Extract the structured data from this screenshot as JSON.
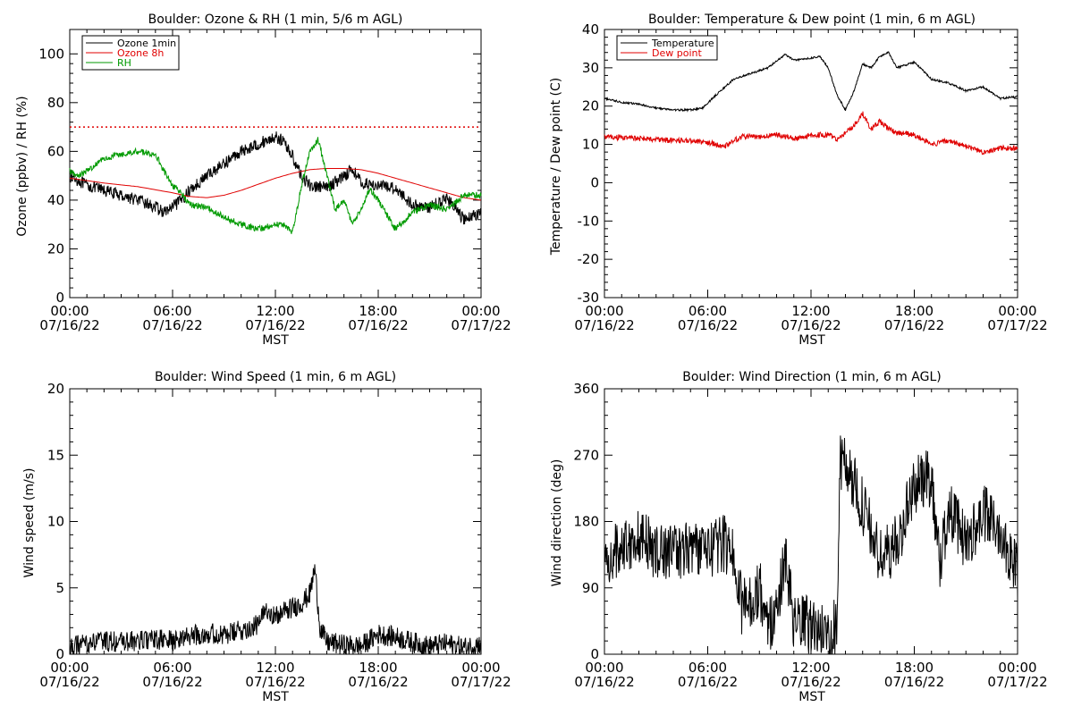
{
  "colors": {
    "black": "#000000",
    "red": "#e00000",
    "green": "#009a00",
    "background": "#ffffff"
  },
  "chart_data": [
    {
      "type": "line",
      "title": "Boulder: Ozone & RH (1 min, 5/6 m AGL)",
      "xlabel": "MST",
      "ylabel": "Ozone (ppbv) / RH (%)",
      "xlim_hours": [
        0,
        24
      ],
      "ylim": [
        0,
        110
      ],
      "yticks": [
        0,
        20,
        40,
        60,
        80,
        100
      ],
      "x_ticks": [
        {
          "hour": 0,
          "time": "00:00",
          "date": "07/16/22"
        },
        {
          "hour": 6,
          "time": "06:00",
          "date": "07/16/22"
        },
        {
          "hour": 12,
          "time": "12:00",
          "date": "07/16/22"
        },
        {
          "hour": 18,
          "time": "18:00",
          "date": "07/16/22"
        },
        {
          "hour": 24,
          "time": "00:00",
          "date": "07/17/22"
        }
      ],
      "legend": "top-left",
      "reference_line": {
        "y": 70,
        "color": "#e00000",
        "style": "dotted"
      },
      "series": [
        {
          "name": "Ozone 1min",
          "color": "#000000",
          "noise": 2.5,
          "points": [
            [
              0,
              50
            ],
            [
              1,
              46
            ],
            [
              2,
              44
            ],
            [
              3,
              42
            ],
            [
              4,
              40
            ],
            [
              5,
              37
            ],
            [
              5.5,
              35
            ],
            [
              6,
              37
            ],
            [
              6.5,
              40
            ],
            [
              7,
              44
            ],
            [
              8,
              50
            ],
            [
              9,
              55
            ],
            [
              10,
              60
            ],
            [
              11,
              63
            ],
            [
              12,
              66
            ],
            [
              12.5,
              64
            ],
            [
              13,
              58
            ],
            [
              13.5,
              50
            ],
            [
              14,
              46
            ],
            [
              15,
              45
            ],
            [
              16,
              50
            ],
            [
              16.5,
              53
            ],
            [
              17,
              47
            ],
            [
              18,
              46
            ],
            [
              19,
              45
            ],
            [
              20,
              38
            ],
            [
              21,
              37
            ],
            [
              22,
              41
            ],
            [
              23,
              32
            ],
            [
              24,
              35
            ]
          ]
        },
        {
          "name": "Ozone 8h",
          "color": "#e00000",
          "noise": 0,
          "points": [
            [
              0,
              49
            ],
            [
              2,
              47
            ],
            [
              4,
              45.5
            ],
            [
              6,
              43
            ],
            [
              7,
              41.5
            ],
            [
              8,
              41
            ],
            [
              9,
              42
            ],
            [
              10,
              44
            ],
            [
              11,
              46.5
            ],
            [
              12,
              49
            ],
            [
              13,
              51
            ],
            [
              14,
              52.5
            ],
            [
              15,
              53
            ],
            [
              16,
              53
            ],
            [
              17,
              52.5
            ],
            [
              18,
              51
            ],
            [
              19,
              49
            ],
            [
              20,
              47
            ],
            [
              21,
              45
            ],
            [
              22,
              43
            ],
            [
              23,
              41
            ],
            [
              24,
              40
            ]
          ]
        },
        {
          "name": "RH",
          "color": "#009a00",
          "noise": 1.3,
          "points": [
            [
              0,
              52
            ],
            [
              0.5,
              50
            ],
            [
              1,
              52
            ],
            [
              2,
              57
            ],
            [
              3,
              59
            ],
            [
              4,
              60
            ],
            [
              5,
              59
            ],
            [
              5.5,
              52
            ],
            [
              6,
              46
            ],
            [
              6.5,
              43
            ],
            [
              7,
              38
            ],
            [
              8,
              37
            ],
            [
              9,
              33
            ],
            [
              10,
              30
            ],
            [
              11,
              28
            ],
            [
              12,
              30
            ],
            [
              12.5,
              30
            ],
            [
              13,
              27
            ],
            [
              13.5,
              45
            ],
            [
              14,
              60
            ],
            [
              14.5,
              65
            ],
            [
              15,
              50
            ],
            [
              15.5,
              36
            ],
            [
              16,
              40
            ],
            [
              16.5,
              30
            ],
            [
              17,
              36
            ],
            [
              17.5,
              45
            ],
            [
              18,
              40
            ],
            [
              19,
              28
            ],
            [
              20,
              35
            ],
            [
              21,
              38
            ],
            [
              22,
              36
            ],
            [
              23,
              42
            ],
            [
              24,
              42
            ]
          ]
        }
      ]
    },
    {
      "type": "line",
      "title": "Boulder: Temperature & Dew point (1 min, 6 m AGL)",
      "xlabel": "MST",
      "ylabel": "Temperature / Dew point (C)",
      "xlim_hours": [
        0,
        24
      ],
      "ylim": [
        -30,
        40
      ],
      "yticks": [
        -30,
        -20,
        -10,
        0,
        10,
        20,
        30,
        40
      ],
      "x_ticks": [
        {
          "hour": 0,
          "time": "00:00",
          "date": "07/16/22"
        },
        {
          "hour": 6,
          "time": "06:00",
          "date": "07/16/22"
        },
        {
          "hour": 12,
          "time": "12:00",
          "date": "07/16/22"
        },
        {
          "hour": 18,
          "time": "18:00",
          "date": "07/16/22"
        },
        {
          "hour": 24,
          "time": "00:00",
          "date": "07/17/22"
        }
      ],
      "legend": "top-left",
      "series": [
        {
          "name": "Temperature",
          "color": "#000000",
          "noise": 0.25,
          "points": [
            [
              0,
              22
            ],
            [
              1,
              21
            ],
            [
              2,
              20.5
            ],
            [
              3,
              19.5
            ],
            [
              4,
              19
            ],
            [
              5,
              19
            ],
            [
              5.7,
              19.5
            ],
            [
              6.5,
              23
            ],
            [
              7.5,
              27
            ],
            [
              8.5,
              28.5
            ],
            [
              9.5,
              30
            ],
            [
              10.5,
              33.5
            ],
            [
              11,
              32
            ],
            [
              12,
              32.5
            ],
            [
              12.5,
              33
            ],
            [
              13,
              30
            ],
            [
              13.5,
              23
            ],
            [
              14,
              19
            ],
            [
              14.5,
              24
            ],
            [
              15,
              31
            ],
            [
              15.5,
              30
            ],
            [
              16,
              33
            ],
            [
              16.5,
              34
            ],
            [
              17,
              30
            ],
            [
              18,
              31.5
            ],
            [
              19,
              27
            ],
            [
              20,
              26
            ],
            [
              21,
              24
            ],
            [
              22,
              25
            ],
            [
              23,
              22
            ],
            [
              24,
              22.5
            ]
          ]
        },
        {
          "name": "Dew point",
          "color": "#e00000",
          "noise": 0.7,
          "points": [
            [
              0,
              12
            ],
            [
              2,
              11.5
            ],
            [
              4,
              11
            ],
            [
              5,
              11
            ],
            [
              6,
              10.5
            ],
            [
              7,
              9.5
            ],
            [
              7.5,
              11
            ],
            [
              8,
              12
            ],
            [
              9,
              12
            ],
            [
              10,
              12.5
            ],
            [
              11,
              11.5
            ],
            [
              12,
              12.5
            ],
            [
              13,
              12.5
            ],
            [
              13.5,
              11.5
            ],
            [
              14,
              13
            ],
            [
              14.5,
              15
            ],
            [
              15,
              18
            ],
            [
              15.5,
              14
            ],
            [
              16,
              16
            ],
            [
              16.5,
              14
            ],
            [
              17,
              13
            ],
            [
              18,
              12.5
            ],
            [
              19,
              10
            ],
            [
              20,
              11
            ],
            [
              21,
              9.5
            ],
            [
              22,
              8
            ],
            [
              23,
              9
            ],
            [
              24,
              9
            ]
          ]
        }
      ]
    },
    {
      "type": "line",
      "title": "Boulder: Wind Speed (1 min, 6 m AGL)",
      "xlabel": "MST",
      "ylabel": "Wind speed (m/s)",
      "xlim_hours": [
        0,
        24
      ],
      "ylim": [
        0,
        20
      ],
      "yticks": [
        0,
        5,
        10,
        15,
        20
      ],
      "x_ticks": [
        {
          "hour": 0,
          "time": "00:00",
          "date": "07/16/22"
        },
        {
          "hour": 6,
          "time": "06:00",
          "date": "07/16/22"
        },
        {
          "hour": 12,
          "time": "12:00",
          "date": "07/16/22"
        },
        {
          "hour": 18,
          "time": "18:00",
          "date": "07/16/22"
        },
        {
          "hour": 24,
          "time": "00:00",
          "date": "07/17/22"
        }
      ],
      "series": [
        {
          "name": "",
          "color": "#000000",
          "noise": 0.8,
          "floor": 0,
          "points": [
            [
              0,
              0.5
            ],
            [
              1,
              0.8
            ],
            [
              2,
              1
            ],
            [
              3,
              0.9
            ],
            [
              4,
              1
            ],
            [
              5,
              1.1
            ],
            [
              6,
              1
            ],
            [
              7,
              1.4
            ],
            [
              8,
              1.6
            ],
            [
              9,
              1.4
            ],
            [
              10,
              1.8
            ],
            [
              11,
              2.2
            ],
            [
              11.5,
              3.5
            ],
            [
              12,
              2.8
            ],
            [
              12.5,
              3.2
            ],
            [
              13,
              3.5
            ],
            [
              13.5,
              3.8
            ],
            [
              14,
              4.5
            ],
            [
              14.3,
              6.5
            ],
            [
              14.6,
              2
            ],
            [
              15,
              0.9
            ],
            [
              16,
              0.7
            ],
            [
              17,
              0.6
            ],
            [
              18,
              1.5
            ],
            [
              19,
              1.3
            ],
            [
              20,
              0.9
            ],
            [
              21,
              0.6
            ],
            [
              22,
              0.8
            ],
            [
              23,
              0.5
            ],
            [
              24,
              0.8
            ]
          ]
        }
      ]
    },
    {
      "type": "line",
      "title": "Boulder: Wind Direction (1 min, 6 m AGL)",
      "xlabel": "MST",
      "ylabel": "Wind direction (deg)",
      "xlim_hours": [
        0,
        24
      ],
      "ylim": [
        0,
        360
      ],
      "yticks": [
        0,
        90,
        180,
        270,
        360
      ],
      "x_ticks": [
        {
          "hour": 0,
          "time": "00:00",
          "date": "07/16/22"
        },
        {
          "hour": 6,
          "time": "06:00",
          "date": "07/16/22"
        },
        {
          "hour": 12,
          "time": "12:00",
          "date": "07/16/22"
        },
        {
          "hour": 18,
          "time": "18:00",
          "date": "07/16/22"
        },
        {
          "hour": 24,
          "time": "00:00",
          "date": "07/17/22"
        }
      ],
      "series": [
        {
          "name": "",
          "color": "#000000",
          "noise": 40,
          "floor": 0,
          "ceil": 360,
          "points": [
            [
              0,
              120
            ],
            [
              1,
              150
            ],
            [
              2,
              160
            ],
            [
              3,
              140
            ],
            [
              4,
              140
            ],
            [
              5,
              145
            ],
            [
              6,
              140
            ],
            [
              7,
              150
            ],
            [
              7.5,
              140
            ],
            [
              8,
              60
            ],
            [
              9,
              90
            ],
            [
              9.5,
              40
            ],
            [
              10,
              60
            ],
            [
              10.5,
              130
            ],
            [
              11,
              40
            ],
            [
              12,
              40
            ],
            [
              12.5,
              30
            ],
            [
              13,
              30
            ],
            [
              13.5,
              40
            ],
            [
              13.7,
              260
            ],
            [
              14,
              260
            ],
            [
              15,
              200
            ],
            [
              16,
              130
            ],
            [
              17,
              150
            ],
            [
              18,
              230
            ],
            [
              19,
              240
            ],
            [
              19.5,
              120
            ],
            [
              20,
              200
            ],
            [
              21,
              150
            ],
            [
              22,
              190
            ],
            [
              23,
              170
            ],
            [
              24,
              110
            ]
          ]
        }
      ]
    }
  ]
}
